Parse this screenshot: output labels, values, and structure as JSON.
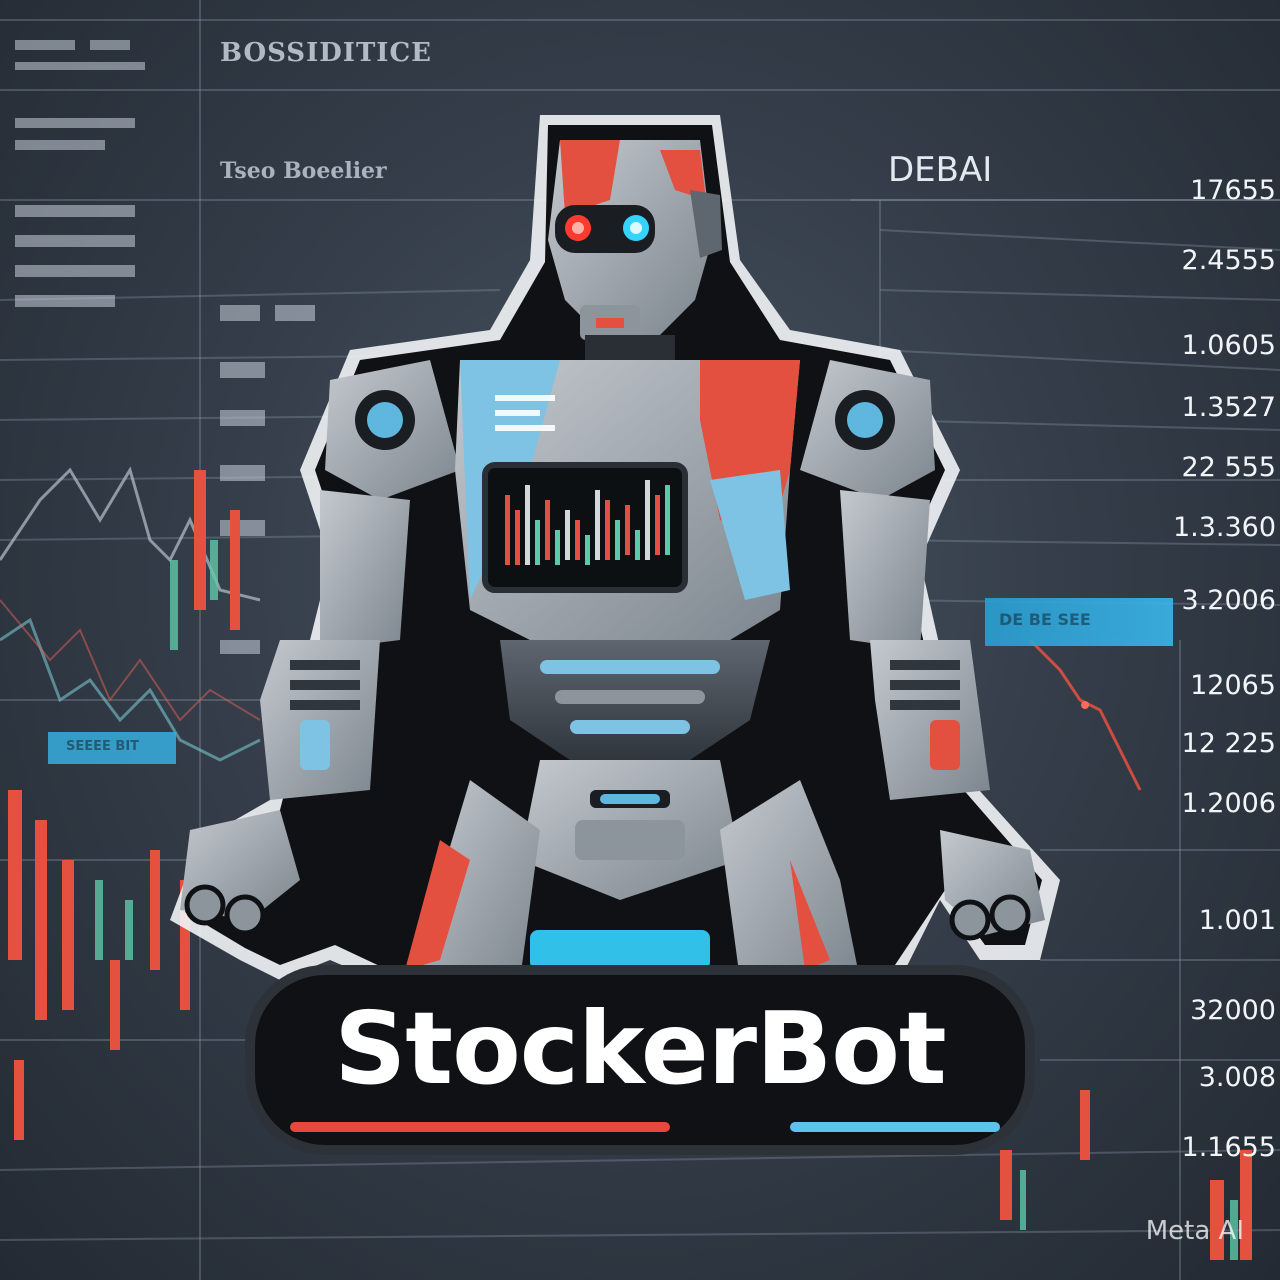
{
  "background": {
    "header_top": "BOSSIDITICE",
    "header_left": "Tseo Boeelier",
    "header_right": "DEBAI",
    "price_column": [
      "17655",
      "2.4555",
      "1.0605",
      "1.3527",
      "22 555",
      "1.3.360",
      "3.2006",
      "12065",
      "12 225",
      "1.2006",
      "1.001",
      "32000",
      "3.008",
      "1.1655"
    ],
    "highlight_bar_right": "DE BE SEE",
    "highlight_bar_left": "SEEEE BIT"
  },
  "logo": {
    "name": "StockerBot",
    "accent_red": "#e8473a",
    "accent_blue": "#5cc3ee"
  },
  "robot": {
    "icon": "robot-mascot-icon",
    "eye_left_color": "#ff3b2f",
    "eye_right_color": "#35d4ff"
  },
  "watermark": "Meta AI"
}
